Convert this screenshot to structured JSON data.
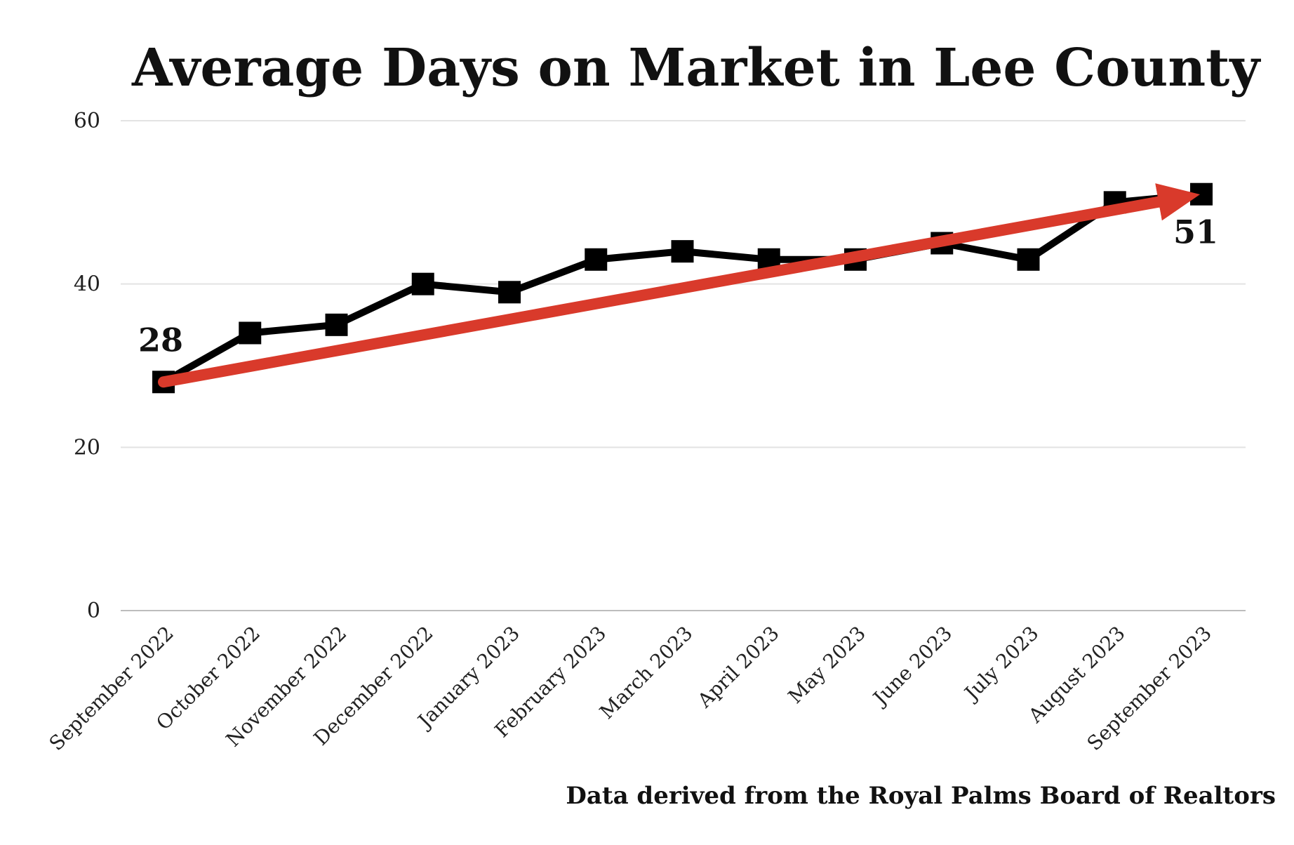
{
  "chart_data": {
    "type": "line",
    "title": "Average Days on Market in Lee County",
    "xlabel": "",
    "ylabel": "",
    "categories": [
      "September 2022",
      "October 2022",
      "November 2022",
      "December 2022",
      "January 2023",
      "February 2023",
      "March 2023",
      "April 2023",
      "May 2023",
      "June 2023",
      "July 2023",
      "August 2023",
      "September 2023"
    ],
    "series": [
      {
        "values": [
          28,
          34,
          35,
          40,
          39,
          43,
          44,
          43,
          43,
          45,
          43,
          50,
          51
        ],
        "color": "#000000",
        "marker": "square"
      }
    ],
    "trend_arrow": {
      "from_category": "September 2022",
      "from_value": 28,
      "to_category": "September 2023",
      "to_value": 51,
      "color": "#d93a2b"
    },
    "data_labels": [
      {
        "category": "September 2022",
        "text": "28"
      },
      {
        "category": "September 2023",
        "text": "51"
      }
    ],
    "y_ticks": [
      {
        "value": 0,
        "label": "0"
      },
      {
        "value": 20,
        "label": "20"
      },
      {
        "value": 40,
        "label": "40"
      },
      {
        "value": 60,
        "label": "60"
      }
    ],
    "ylim": [
      0,
      60
    ],
    "grid": true,
    "legend": "none",
    "source_note": "Data derived from the Royal Palms Board of Realtors"
  }
}
